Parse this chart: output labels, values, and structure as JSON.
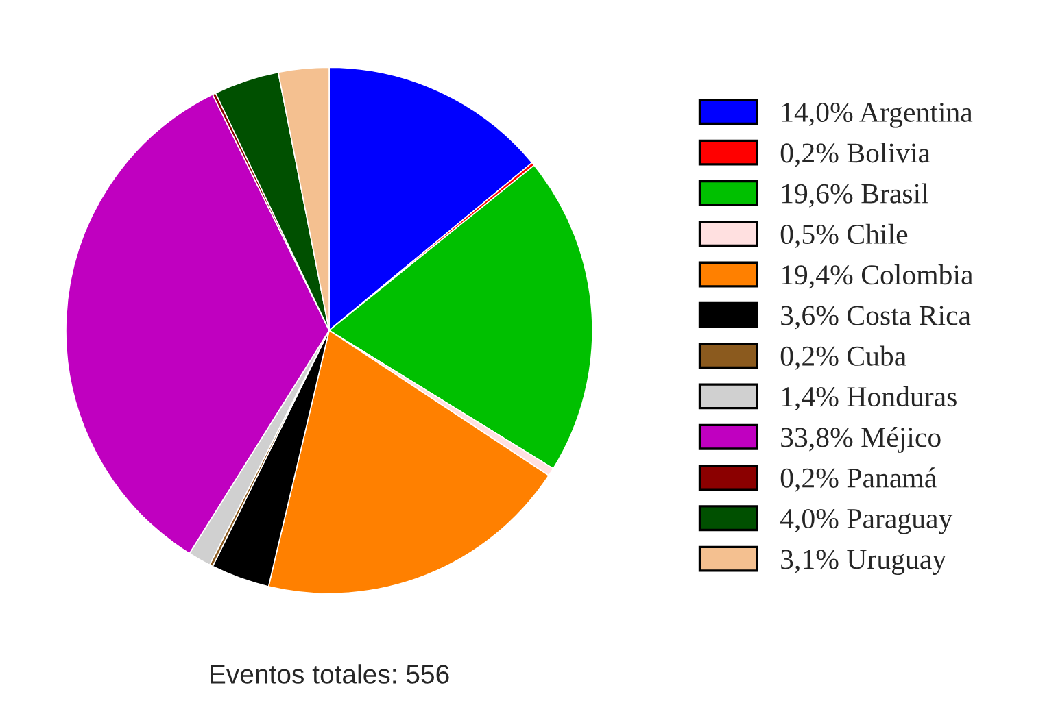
{
  "chart_data": {
    "type": "pie",
    "categories": [
      "Argentina",
      "Bolivia",
      "Brasil",
      "Chile",
      "Colombia",
      "Costa Rica",
      "Cuba",
      "Honduras",
      "Méjico",
      "Panamá",
      "Paraguay",
      "Uruguay"
    ],
    "values": [
      14.0,
      0.2,
      19.6,
      0.5,
      19.4,
      3.6,
      0.2,
      1.4,
      33.8,
      0.2,
      4.0,
      3.1
    ],
    "value_labels": [
      "14,0%",
      "0,2%",
      "19,6%",
      "0,5%",
      "19,4%",
      "3,6%",
      "0,2%",
      "1,4%",
      "33,8%",
      "0,2%",
      "4,0%",
      "3,1%"
    ],
    "colors": [
      "#0000ff",
      "#ff0000",
      "#00c000",
      "#ffe0e0",
      "#ff8000",
      "#000000",
      "#8b5a1e",
      "#d0d0d0",
      "#c000c0",
      "#8b0000",
      "#005000",
      "#f4c090"
    ],
    "legend": "right",
    "annotations": [
      "Eventos totales: 556"
    ]
  }
}
